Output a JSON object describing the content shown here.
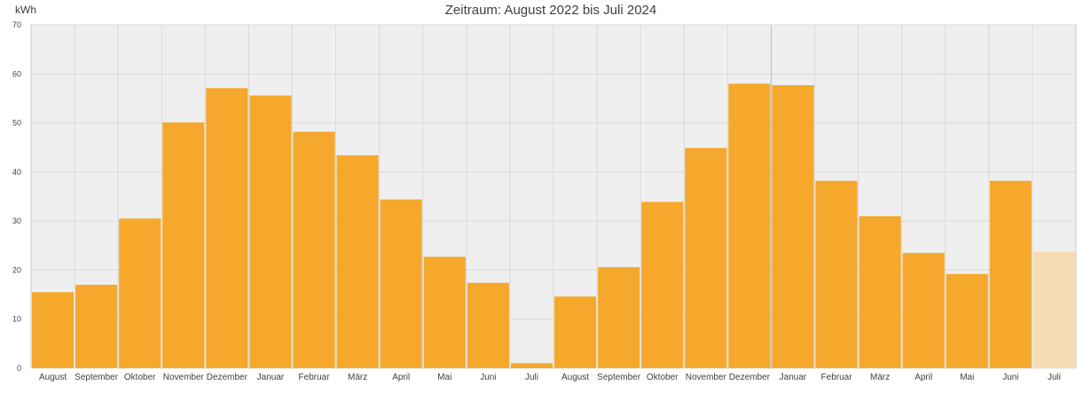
{
  "chart_data": {
    "type": "bar",
    "title": "Zeitraum: August 2022 bis Juli 2024",
    "ylabel": "kWh",
    "ylim": [
      0,
      70
    ],
    "yticks": [
      0,
      10,
      20,
      30,
      40,
      50,
      60,
      70
    ],
    "grid": true,
    "categories": [
      "August",
      "September",
      "Oktober",
      "November",
      "Dezember",
      "Januar",
      "Februar",
      "März",
      "April",
      "Mai",
      "Juni",
      "Juli",
      "August",
      "September",
      "Oktober",
      "November",
      "Dezember",
      "Januar",
      "Februar",
      "März",
      "April",
      "Mai",
      "Juni",
      "Juli"
    ],
    "series": [
      {
        "values": [
          15.5,
          17.0,
          30.5,
          50.1,
          57.1,
          55.6,
          48.2,
          43.4,
          34.4,
          22.7,
          17.4,
          1.0,
          14.6,
          20.6,
          33.9,
          44.9,
          58.0,
          57.7,
          38.2,
          31.0,
          23.5,
          19.2,
          38.2,
          23.7
        ]
      }
    ],
    "colors": {
      "bar": "#f5a82b",
      "bar_current": "#f5dcb4",
      "plot_bg": "#efefef",
      "grid": "#d9d9d9",
      "divider": "#9dc3e6"
    },
    "current_period_index": 23
  }
}
